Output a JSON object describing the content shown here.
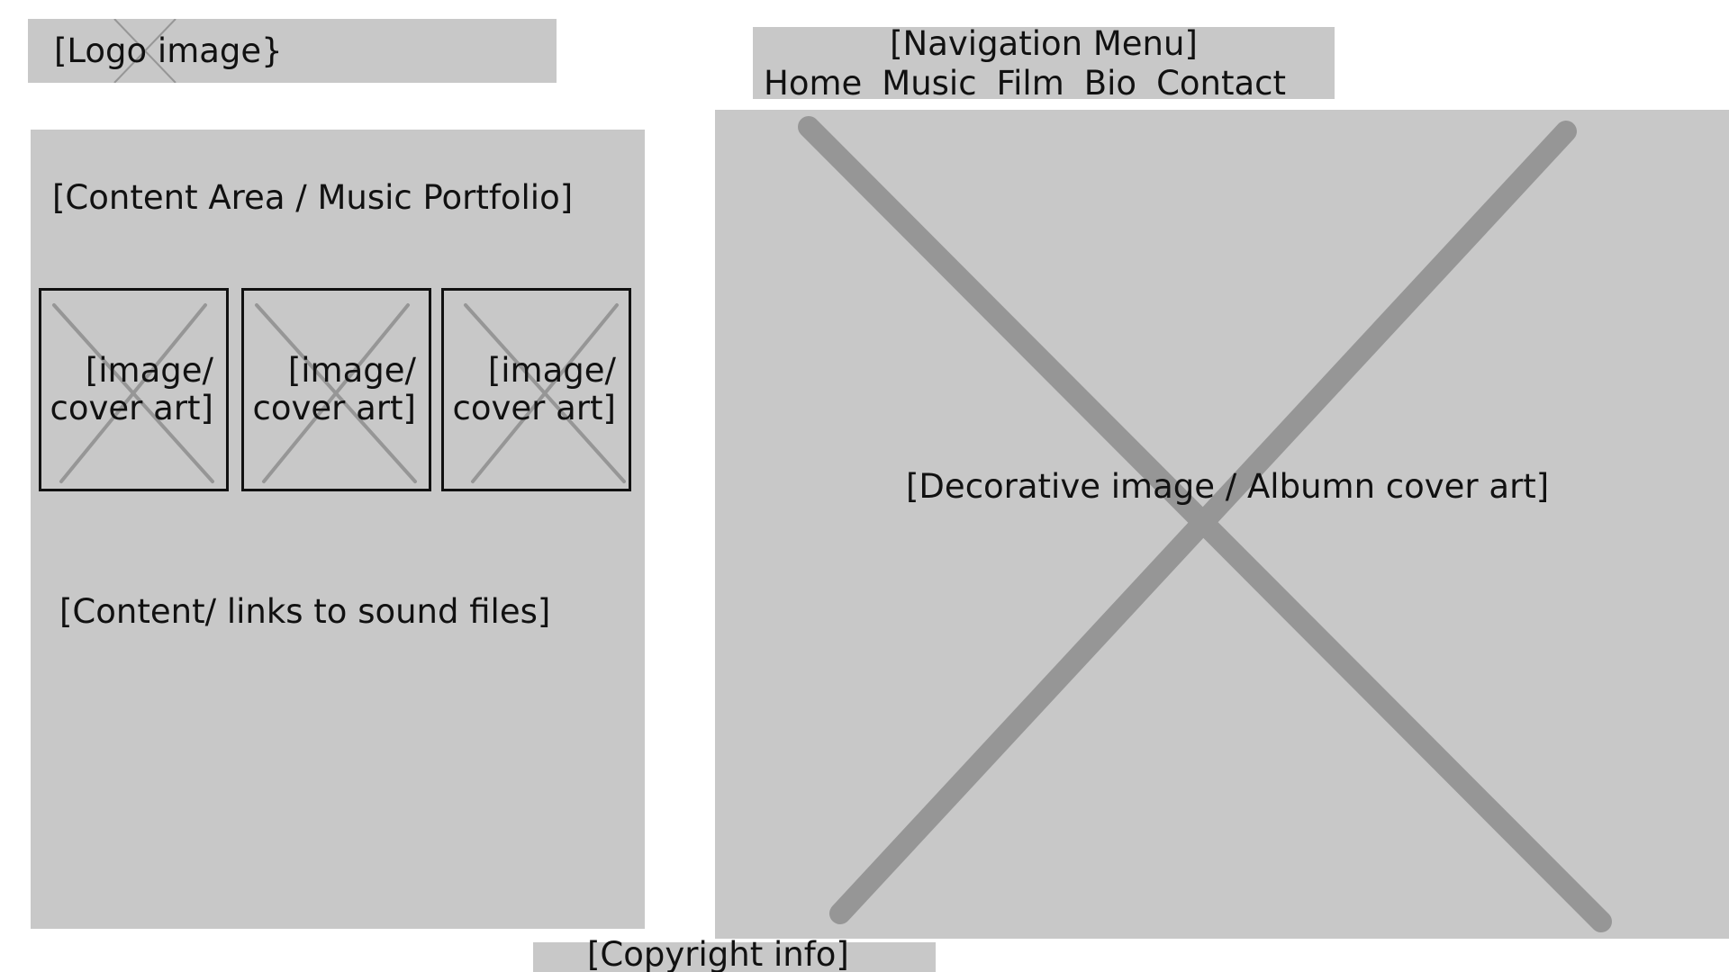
{
  "logo": {
    "label": "[Logo image}"
  },
  "nav": {
    "title": "[Navigation Menu]",
    "items": [
      {
        "label": "Home"
      },
      {
        "label": "Music"
      },
      {
        "label": "Film"
      },
      {
        "label": "Bio"
      },
      {
        "label": "Contact"
      }
    ]
  },
  "content": {
    "title": "[Content Area / Music Portfolio]",
    "thumbnails": [
      {
        "label": "[image/\ncover art]"
      },
      {
        "label": "[image/\ncover art]"
      },
      {
        "label": "[image/\ncover art]"
      }
    ],
    "links_label": "[Content/ links to sound files]"
  },
  "hero": {
    "label": "[Decorative image / Albumn cover art]"
  },
  "footer": {
    "label": "[Copyright info]"
  },
  "colors": {
    "placeholder_fill": "#c8c8c8",
    "cross_stroke": "#969696",
    "text": "#111111",
    "thumb_border": "#111111",
    "background": "#ffffff"
  }
}
